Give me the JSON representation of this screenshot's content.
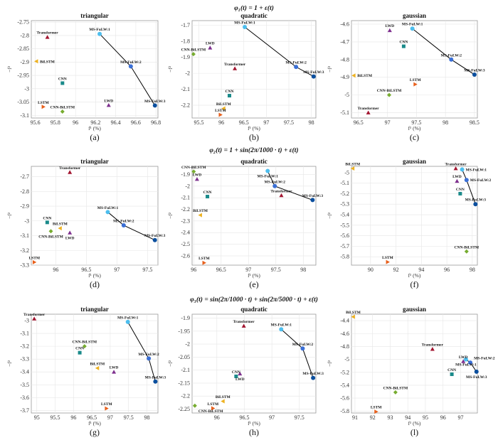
{
  "methods": [
    {
      "name": "Transformer",
      "color": "#a2142f",
      "shape": "triangle-up"
    },
    {
      "name": "BiLSTM",
      "color": "#edb120",
      "shape": "triangle-left"
    },
    {
      "name": "CNN",
      "color": "#1a8a8a",
      "shape": "square"
    },
    {
      "name": "LSTM",
      "color": "#e8601c",
      "shape": "triangle-right"
    },
    {
      "name": "CNN-BiLSTM",
      "color": "#77ac30",
      "shape": "diamond"
    },
    {
      "name": "LWD",
      "color": "#7e2f8e",
      "shape": "triangle-up"
    },
    {
      "name": "MS-FuLW:1",
      "color": "#4dbeee",
      "shape": "circle"
    },
    {
      "name": "MS-FuLW:2",
      "color": "#3a6fd6",
      "shape": "circle"
    },
    {
      "name": "MS-FuLW:3",
      "color": "#0b4f9e",
      "shape": "circle"
    }
  ],
  "row_titles": [
    "φ₁(t) = 1 + ε(t)",
    "φ₂(t) = 1 + sin(2π/1000 · t) + ε(t)",
    "φ₃(t) = sin(2π/1000 · t) + sin(2π/5000 · t) + ε(t)"
  ],
  "xlabel": "f¹ (%)",
  "ylabel": "−f²",
  "chart_data": [
    {
      "type": "scatter",
      "title": "triangular",
      "panel_label": "(a)",
      "xlim": [
        95.56,
        96.82
      ],
      "ylim": [
        -3.11,
        -2.744
      ],
      "grid": true,
      "xticks": [
        95.6,
        95.8,
        96,
        96.2,
        96.4,
        96.6,
        96.8
      ],
      "yticks": [
        -2.75,
        -2.8,
        -2.85,
        -2.9,
        -2.95,
        -3,
        -3.05,
        -3.1
      ],
      "points": {
        "Transformer": [
          95.72,
          -2.806
        ],
        "BiLSTM": [
          95.61,
          -2.897
        ],
        "CNN": [
          95.87,
          -2.979
        ],
        "LSTM": [
          95.68,
          -3.068
        ],
        "CNN-BiLSTM": [
          95.87,
          -3.086
        ],
        "LWD": [
          96.33,
          -3.062
        ],
        "MS-FuLW:1": [
          96.24,
          -2.794
        ],
        "MS-FuLW:2": [
          96.55,
          -2.916
        ],
        "MS-FuLW:3": [
          96.79,
          -3.063
        ]
      }
    },
    {
      "type": "scatter",
      "title": "quadratic",
      "panel_label": "(b)",
      "xlim": [
        95.35,
        98.1
      ],
      "ylim": [
        -2.28,
        -1.67
      ],
      "grid": true,
      "xticks": [
        95.5,
        96,
        96.5,
        97,
        97.5,
        98
      ],
      "yticks": [
        -1.7,
        -1.8,
        -1.9,
        -2,
        -2.1,
        -2.2
      ],
      "points": {
        "Transformer": [
          96.3,
          -1.97
        ],
        "BiLSTM": [
          96.05,
          -2.22
        ],
        "CNN": [
          96.18,
          -2.14
        ],
        "LSTM": [
          95.98,
          -2.26
        ],
        "CNN-BiLSTM": [
          95.38,
          -1.88
        ],
        "LWD": [
          95.75,
          -1.84
        ],
        "MS-FuLW:1": [
          96.52,
          -1.71
        ],
        "MS-FuLW:2": [
          97.66,
          -1.96
        ],
        "MS-FuLW:3": [
          98.05,
          -2.02
        ]
      }
    },
    {
      "type": "scatter",
      "title": "gaussian",
      "panel_label": "(c)",
      "xlim": [
        96.38,
        98.55
      ],
      "ylim": [
        -5.13,
        -4.58
      ],
      "grid": true,
      "xticks": [
        96.5,
        97,
        97.5,
        98,
        98.5
      ],
      "yticks": [
        -4.6,
        -4.7,
        -4.8,
        -4.9,
        -5,
        -5.1
      ],
      "points": {
        "Transformer": [
          96.67,
          -5.1
        ],
        "BiLSTM": [
          96.42,
          -4.89
        ],
        "CNN": [
          97.28,
          -4.725
        ],
        "LSTM": [
          97.48,
          -4.94
        ],
        "CNN-BiLSTM": [
          97.03,
          -5.0
        ],
        "LWD": [
          97.04,
          -4.635
        ],
        "MS-FuLW:1": [
          97.43,
          -4.625
        ],
        "MS-FuLW:2": [
          98.1,
          -4.8
        ],
        "MS-FuLW:3": [
          98.5,
          -4.885
        ]
      }
    },
    {
      "type": "scatter",
      "title": "triangular",
      "panel_label": "(d)",
      "xlim": [
        95.6,
        97.67
      ],
      "ylim": [
        -3.3,
        -2.63
      ],
      "grid": true,
      "xticks": [
        96,
        96.5,
        97,
        97.5
      ],
      "yticks": [
        -2.7,
        -2.8,
        -2.9,
        -3,
        -3.1,
        -3.2,
        -3.3
      ],
      "points": {
        "Transformer": [
          96.23,
          -2.67
        ],
        "BiLSTM": [
          96.07,
          -3.05
        ],
        "CNN": [
          95.86,
          -3.01
        ],
        "LSTM": [
          95.65,
          -3.28
        ],
        "CNN-BiLSTM": [
          95.92,
          -3.07
        ],
        "LWD": [
          96.23,
          -3.08
        ],
        "MS-FuLW:1": [
          96.85,
          -2.94
        ],
        "MS-FuLW:2": [
          97.11,
          -3.03
        ],
        "MS-FuLW:3": [
          97.62,
          -3.13
        ]
      }
    },
    {
      "type": "scatter",
      "title": "quadratic",
      "panel_label": "(e)",
      "xlim": [
        95.97,
        98.23
      ],
      "ylim": [
        -2.68,
        -1.83
      ],
      "grid": true,
      "xticks": [
        96,
        96.5,
        97,
        97.5,
        98
      ],
      "yticks": [
        -1.9,
        -2,
        -2.1,
        -2.2,
        -2.3,
        -2.4,
        -2.5,
        -2.6
      ],
      "points": {
        "Transformer": [
          97.6,
          -2.08
        ],
        "BiLSTM": [
          96.12,
          -2.25
        ],
        "CNN": [
          96.25,
          -2.09
        ],
        "LSTM": [
          96.19,
          -2.66
        ],
        "CNN-BiLSTM": [
          96.0,
          -1.875
        ],
        "LWD": [
          96.06,
          -1.94
        ],
        "MS-FuLW:1": [
          97.35,
          -1.87
        ],
        "MS-FuLW:2": [
          97.48,
          -2.0
        ],
        "MS-FuLW:3": [
          98.17,
          -2.12
        ]
      }
    },
    {
      "type": "scatter",
      "title": "gaussian",
      "panel_label": "(f)",
      "xlim": [
        88.5,
        98.4
      ],
      "ylim": [
        -5.88,
        -4.94
      ],
      "grid": true,
      "xticks": [
        90,
        92,
        94,
        96,
        98
      ],
      "yticks": [
        -5,
        -5.1,
        -5.2,
        -5.3,
        -5.4,
        -5.5,
        -5.6,
        -5.7,
        -5.8
      ],
      "points": {
        "Transformer": [
          96.7,
          -4.96
        ],
        "BiLSTM": [
          88.6,
          -4.96
        ],
        "CNN": [
          97.05,
          -5.2
        ],
        "LSTM": [
          91.35,
          -5.85
        ],
        "CNN-BiLSTM": [
          97.55,
          -5.75
        ],
        "LWD": [
          96.8,
          -5.08
        ],
        "MS-FuLW:1": [
          97.2,
          -4.97
        ],
        "MS-FuLW:2": [
          97.55,
          -5.07
        ],
        "MS-FuLW:3": [
          98.25,
          -5.3
        ]
      }
    },
    {
      "type": "scatter",
      "title": "triangular",
      "panel_label": "(g)",
      "xlim": [
        94.85,
        98.3
      ],
      "ylim": [
        -3.72,
        -2.95
      ],
      "grid": true,
      "xticks": [
        95,
        95.5,
        96,
        96.5,
        97,
        97.5,
        98
      ],
      "yticks": [
        -3,
        -3.1,
        -3.2,
        -3.3,
        -3.4,
        -3.5,
        -3.6,
        -3.7
      ],
      "points": {
        "Transformer": [
          94.93,
          -2.985
        ],
        "BiLSTM": [
          96.65,
          -3.37
        ],
        "CNN": [
          96.17,
          -3.25
        ],
        "LSTM": [
          96.9,
          -3.685
        ],
        "CNN-BiLSTM": [
          96.3,
          -3.2
        ],
        "LWD": [
          97.1,
          -3.4
        ],
        "MS-FuLW:1": [
          97.48,
          -3.01
        ],
        "MS-FuLW:2": [
          98.05,
          -3.295
        ],
        "MS-FuLW:3": [
          98.23,
          -3.475
        ]
      }
    },
    {
      "type": "scatter",
      "title": "quadratic",
      "panel_label": "(h)",
      "xlim": [
        95.55,
        97.8
      ],
      "ylim": [
        -2.265,
        -1.885
      ],
      "grid": true,
      "xticks": [
        96,
        96.5,
        97,
        97.5
      ],
      "yticks": [
        -1.9,
        -1.95,
        -2,
        -2.05,
        -2.1,
        -2.15,
        -2.2,
        -2.25
      ],
      "points": {
        "Transformer": [
          96.49,
          -1.93
        ],
        "BiLSTM": [
          96.11,
          -2.22
        ],
        "CNN": [
          96.35,
          -2.124
        ],
        "LSTM": [
          95.93,
          -2.247
        ],
        "CNN-BiLSTM": [
          95.6,
          -2.237
        ],
        "LWD": [
          96.42,
          -2.114
        ],
        "MS-FuLW:1": [
          97.17,
          -1.943
        ],
        "MS-FuLW:2": [
          97.56,
          -2.017
        ],
        "MS-FuLW:3": [
          97.75,
          -2.13
        ]
      }
    },
    {
      "type": "scatter",
      "title": "gaussian",
      "panel_label": "(l)",
      "xlim": [
        90.8,
        97.95
      ],
      "ylim": [
        -5.83,
        -4.3
      ],
      "grid": true,
      "xticks": [
        91,
        92,
        93,
        94,
        95,
        96,
        97
      ],
      "yticks": [
        -4.4,
        -4.6,
        -4.8,
        -5,
        -5.2,
        -5.4,
        -5.6,
        -5.8
      ],
      "points": {
        "Transformer": [
          95.4,
          -4.84
        ],
        "BiLSTM": [
          90.9,
          -4.34
        ],
        "CNN": [
          96.5,
          -5.23
        ],
        "LSTM": [
          92.2,
          -5.81
        ],
        "CNN-BiLSTM": [
          93.3,
          -5.51
        ],
        "LWD": [
          97.15,
          -5.03
        ],
        "MS-FuLW:1": [
          97.3,
          -5.0
        ],
        "MS-FuLW:2": [
          97.55,
          -5.05
        ],
        "MS-FuLW:3": [
          97.9,
          -5.19
        ]
      }
    }
  ]
}
